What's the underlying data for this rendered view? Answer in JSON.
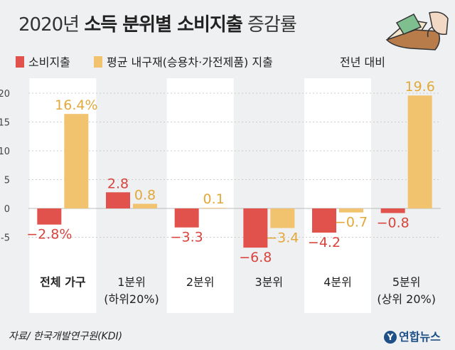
{
  "header": {
    "title_year": "2020년",
    "title_bold": "소득 분위별 소비지출",
    "title_rest": "증감률"
  },
  "legend": {
    "series1": "소비지출",
    "series2": "평균 내구재(승용차·가전제품) 지출",
    "note": "전년 대비"
  },
  "colors": {
    "series1": "#e0524b",
    "series2": "#f2c36e",
    "panel": "#ffffff",
    "background": "#eef0f1"
  },
  "chart_data": {
    "type": "bar",
    "categories": [
      {
        "line1": "전체 가구",
        "line2": ""
      },
      {
        "line1": "1분위",
        "line2": "(하위20%)"
      },
      {
        "line1": "2분위",
        "line2": ""
      },
      {
        "line1": "3분위",
        "line2": ""
      },
      {
        "line1": "4분위",
        "line2": ""
      },
      {
        "line1": "5분위",
        "line2": "(상위 20%)"
      }
    ],
    "series": [
      {
        "name": "소비지출",
        "values": [
          -2.8,
          2.8,
          -3.3,
          -6.8,
          -4.2,
          -0.8
        ],
        "labels": [
          "−2.8%",
          "2.8",
          "−3.3",
          "−6.8",
          "−4.2",
          "−0.8"
        ]
      },
      {
        "name": "평균 내구재(승용차·가전제품) 지출",
        "values": [
          16.4,
          0.8,
          0.1,
          -3.4,
          -0.7,
          19.6
        ],
        "labels": [
          "16.4%",
          "0.8",
          "0.1",
          "−3.4",
          "−0.7",
          "19.6"
        ]
      }
    ],
    "ylim": [
      -8.4,
      22
    ],
    "yticks": [
      20,
      15,
      10,
      5,
      0,
      -5
    ],
    "ytick_labels": [
      "20",
      "15",
      "10",
      "5",
      "0",
      "-5"
    ]
  },
  "footer": {
    "source": "자료/ 한국개발연구원(KDI)",
    "logo_text": "연합뉴스"
  }
}
